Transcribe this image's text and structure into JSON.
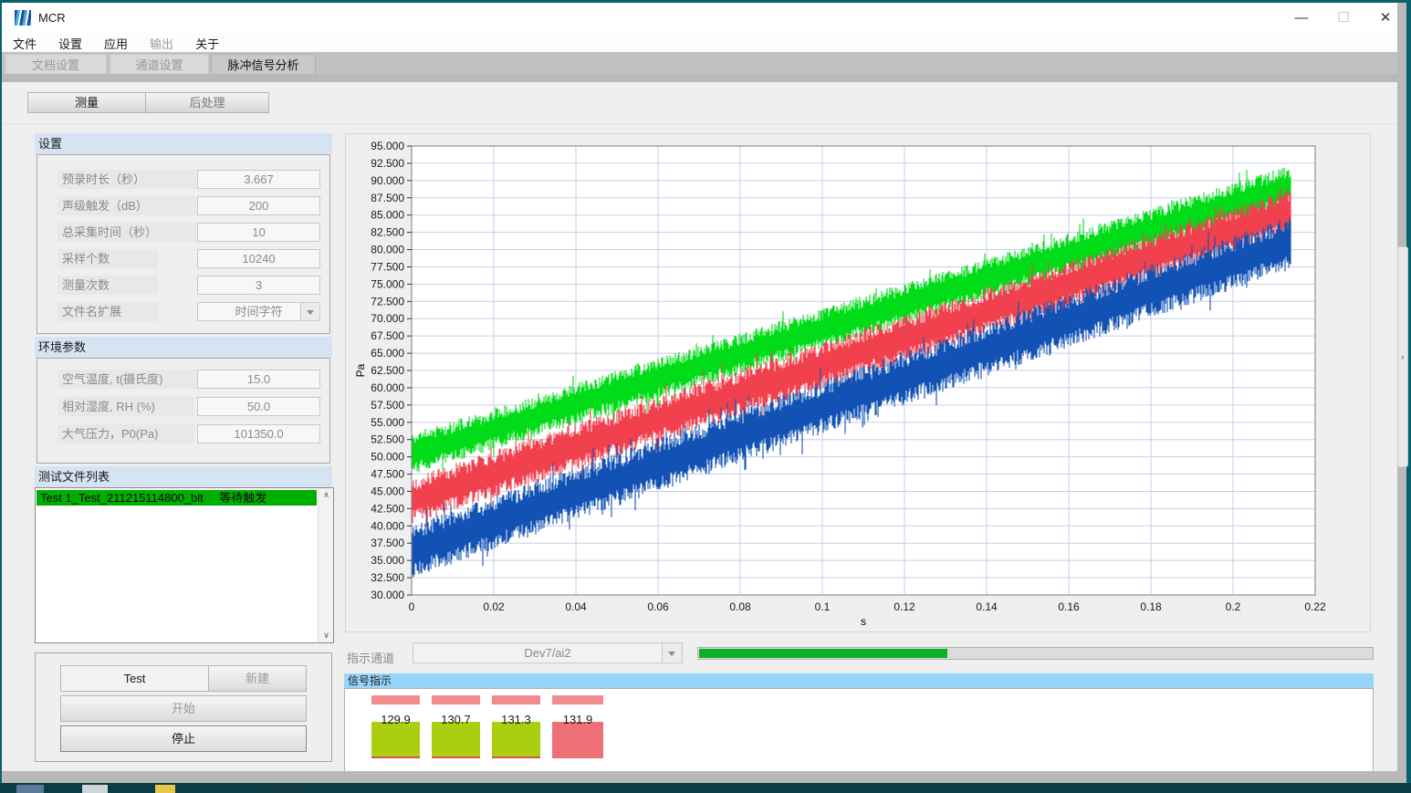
{
  "window": {
    "title": "MCR"
  },
  "icons": {
    "minimize": "—",
    "maximize": "☐",
    "close": "✕",
    "scroll_up": "∧",
    "scroll_down": "∨",
    "collapse_left": "‹"
  },
  "menu": {
    "items": [
      {
        "label": "文件",
        "enabled": true
      },
      {
        "label": "设置",
        "enabled": true
      },
      {
        "label": "应用",
        "enabled": true
      },
      {
        "label": "输出",
        "enabled": false
      },
      {
        "label": "关于",
        "enabled": true
      }
    ]
  },
  "tabs": [
    {
      "label": "文档设置",
      "active": false
    },
    {
      "label": "通道设置",
      "active": false
    },
    {
      "label": "脉冲信号分析",
      "active": true
    }
  ],
  "subtabs": {
    "measure": "测量",
    "postprocess": "后处理"
  },
  "settings_panel": {
    "header": "设置",
    "fields": [
      {
        "label": "预录时长（秒）",
        "value": "3.667",
        "type": "field"
      },
      {
        "label": "声级触发（dB）",
        "value": "200",
        "type": "field"
      },
      {
        "label": "总采集时间（秒）",
        "value": "10",
        "type": "field"
      },
      {
        "label": "采样个数",
        "value": "10240",
        "type": "field"
      },
      {
        "label": "测量次数",
        "value": "3",
        "type": "field"
      },
      {
        "label": "文件名扩展",
        "value": "时间字符",
        "type": "dropdown"
      }
    ]
  },
  "env_panel": {
    "header": "环境参数",
    "fields": [
      {
        "label": "空气温度, t(摄氏度)",
        "value": "15.0"
      },
      {
        "label": "相对湿度, RH (%)",
        "value": "50.0"
      },
      {
        "label": "大气压力，P0(Pa)",
        "value": "101350.0"
      }
    ]
  },
  "file_list": {
    "header": "测试文件列表",
    "items": [
      {
        "name": "Test 1_Test_211215114800_blt",
        "status": "等待触发"
      }
    ]
  },
  "controls_panel": {
    "test_name": "Test",
    "new_button": "新建",
    "start_button": "开始",
    "stop_button": "停止"
  },
  "indicator_row": {
    "label": "指示通道",
    "channel": "Dev7/ai2",
    "progress_percent": 36.8
  },
  "signal_panel": {
    "header": "信号指示",
    "cells": [
      {
        "value": "129.9",
        "state": "ok"
      },
      {
        "value": "130.7",
        "state": "ok"
      },
      {
        "value": "131.3",
        "state": "ok"
      },
      {
        "value": "131.9",
        "state": "alarm"
      }
    ]
  },
  "colors": {
    "ok_box": "#abce11",
    "alarm_box": "#ee7077",
    "top_bar": "#f28b8e",
    "ok_box_underline": "#e05050",
    "progress_green": "#0cb125",
    "list_item_green": "#00ae00",
    "section_header_blue": "#d5e3f3",
    "signal_header_blue": "#97d6fa"
  },
  "chart_data": {
    "type": "line",
    "title": "",
    "xlabel": "s",
    "ylabel": "Pa",
    "xlim": [
      0,
      0.22
    ],
    "ylim": [
      30,
      95
    ],
    "x_tick_step": 0.02,
    "y_tick_step": 2.5,
    "grid": true,
    "legend": "none",
    "description": "Three dense noisy sound-pressure bands rising linearly from t=0 to t=0.214 s",
    "x_data_end": 0.214,
    "series": [
      {
        "name": "signal-green",
        "color": "#00dd18",
        "center_start": 50.4,
        "center_end": 89.2,
        "half_amplitude": 3.0,
        "seed": 11
      },
      {
        "name": "signal-red",
        "color": "#f2414e",
        "center_start": 43.6,
        "center_end": 85.6,
        "half_amplitude": 3.4,
        "seed": 22
      },
      {
        "name": "signal-blue",
        "color": "#1152b4",
        "center_start": 36.3,
        "center_end": 81.0,
        "half_amplitude": 3.9,
        "seed": 33
      }
    ]
  }
}
